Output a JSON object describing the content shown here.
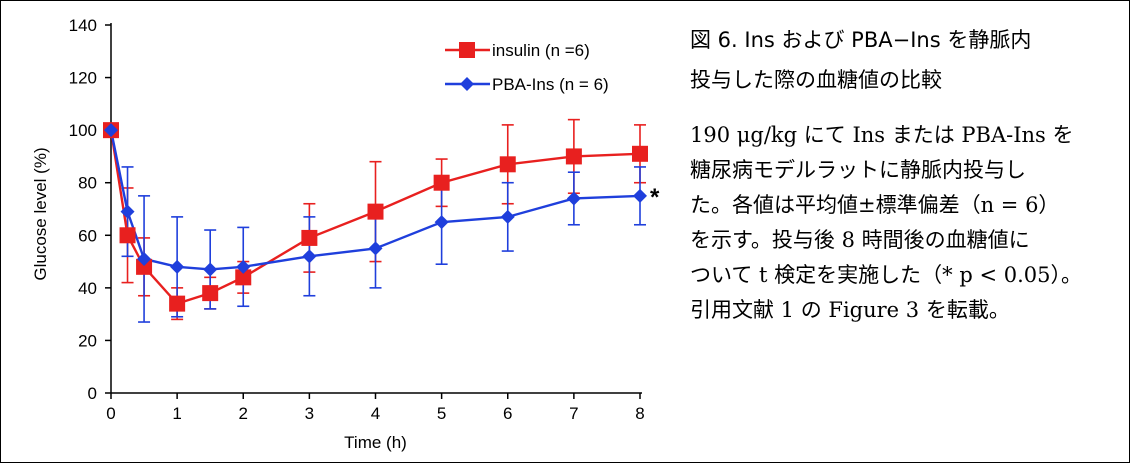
{
  "chart_data": {
    "type": "line",
    "xlabel": "Time (h)",
    "ylabel": "Glucose level (%)",
    "xlim": [
      0,
      8
    ],
    "ylim": [
      0,
      140
    ],
    "xticks": [
      "0",
      "1",
      "2",
      "3",
      "4",
      "5",
      "6",
      "7",
      "8"
    ],
    "yticks": [
      "0",
      "20",
      "40",
      "60",
      "80",
      "100",
      "120",
      "140"
    ],
    "grid": false,
    "legend_position": "top-right",
    "series": [
      {
        "name": "insulin (n =6)",
        "color": "#e8201f",
        "marker": "square",
        "x": [
          0,
          0.25,
          0.5,
          1,
          1.5,
          2,
          3,
          4,
          5,
          6,
          7,
          8
        ],
        "y": [
          100,
          60,
          48,
          34,
          38,
          44,
          59,
          69,
          80,
          87,
          90,
          91
        ],
        "error": [
          0,
          18,
          11,
          6,
          6,
          6,
          13,
          19,
          9,
          15,
          14,
          11
        ]
      },
      {
        "name": "PBA-Ins (n = 6)",
        "color": "#1f3fdc",
        "marker": "diamond",
        "x": [
          0,
          0.25,
          0.5,
          1,
          1.5,
          2,
          3,
          4,
          5,
          6,
          7,
          8
        ],
        "y": [
          100,
          69,
          51,
          48,
          47,
          48,
          52,
          55,
          65,
          67,
          74,
          75
        ],
        "error": [
          0,
          17,
          24,
          19,
          15,
          15,
          15,
          15,
          16,
          13,
          10,
          11
        ]
      }
    ],
    "annotation": "*"
  },
  "caption": {
    "title_line1": "図 6. Ins および PBA−Ins を静脈内",
    "title_line2": "投与した際の血糖値の比較",
    "body_lines": [
      "190 μg/kg にて Ins または PBA-Ins を",
      "糖尿病モデルラットに静脈内投与し",
      "た。各値は平均値±標準偏差（n = 6）",
      "を示す。投与後 8 時間後の血糖値に",
      "ついて t 検定を実施した（* p < 0.05）。",
      "引用文献 1 の Figure 3 を転載。"
    ]
  }
}
